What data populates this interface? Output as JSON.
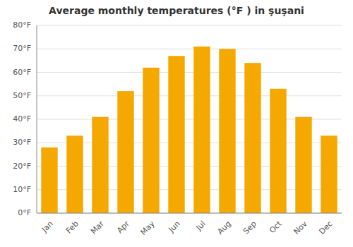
{
  "chart_data": {
    "type": "bar",
    "title": "Average monthly temperatures (°F ) in şuşani",
    "categories": [
      "Jan",
      "Feb",
      "Mar",
      "Apr",
      "May",
      "Jun",
      "Jul",
      "Aug",
      "Sep",
      "Oct",
      "Nov",
      "Dec"
    ],
    "values": [
      28,
      33,
      41,
      52,
      62,
      67,
      71,
      70,
      64,
      53,
      41,
      33
    ],
    "color": "#F5A800",
    "ylim": [
      0,
      80
    ],
    "yticks": [
      {
        "value": 0,
        "label": "0°F"
      },
      {
        "value": 10,
        "label": "10°F"
      },
      {
        "value": 20,
        "label": "20°F"
      },
      {
        "value": 30,
        "label": "30°F"
      },
      {
        "value": 40,
        "label": "40°F"
      },
      {
        "value": 50,
        "label": "50°F"
      },
      {
        "value": 60,
        "label": "60°F"
      },
      {
        "value": 70,
        "label": "70°F"
      },
      {
        "value": 80,
        "label": "80°F"
      }
    ],
    "grid": true
  }
}
